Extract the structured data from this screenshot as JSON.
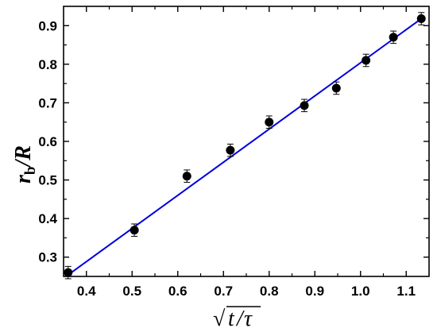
{
  "chart_data": {
    "type": "scatter",
    "xlabel": {
      "prefix": "√",
      "var1": "t",
      "sep": "/",
      "var2": "τ"
    },
    "ylabel": {
      "r": "r",
      "sub": "b",
      "rest": "/R"
    },
    "xlim": [
      0.35,
      1.15
    ],
    "ylim": [
      0.25,
      0.95
    ],
    "xticks": [
      "0.4",
      "0.5",
      "0.6",
      "0.7",
      "0.8",
      "0.9",
      "1.0",
      "1.1"
    ],
    "yticks": [
      "0.3",
      "0.4",
      "0.5",
      "0.6",
      "0.7",
      "0.8",
      "0.9"
    ],
    "series": [
      {
        "x": [
          0.36,
          0.505,
          0.62,
          0.715,
          0.8,
          0.877,
          0.947,
          1.012,
          1.072,
          1.133
        ],
        "y": [
          0.26,
          0.37,
          0.51,
          0.577,
          0.65,
          0.693,
          0.738,
          0.81,
          0.87,
          0.918
        ],
        "yerr": [
          0.016,
          0.016,
          0.016,
          0.016,
          0.016,
          0.016,
          0.016,
          0.016,
          0.016,
          0.016
        ],
        "color": "#000000"
      }
    ],
    "fit_line": {
      "x": [
        0.36,
        1.133
      ],
      "y": [
        0.254,
        0.918
      ],
      "color": "#0000dd"
    }
  }
}
